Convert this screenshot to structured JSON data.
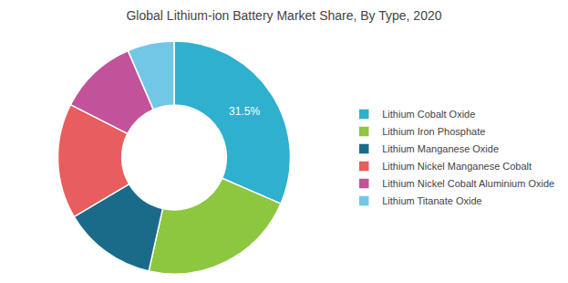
{
  "chart_data": {
    "type": "donut",
    "title": "Global Lithium-ion Battery Market Share, By Type, 2020",
    "categories": [
      "Lithium Cobalt Oxide",
      "Lithium Iron Phosphate",
      "Lithium Manganese Oxide",
      "Lithium Nickel Manganese Cobalt",
      "Lithium Nickel Cobalt Aluminium Oxide",
      "Lithium Titanate Oxide"
    ],
    "values": [
      31.5,
      22.0,
      13.0,
      16.0,
      11.0,
      6.5
    ],
    "colors": [
      "#2EB0CE",
      "#8DC63F",
      "#1A6B8A",
      "#E85D5D",
      "#C2529A",
      "#72C7E7"
    ],
    "annotation": "31.5%",
    "legend": "right"
  }
}
